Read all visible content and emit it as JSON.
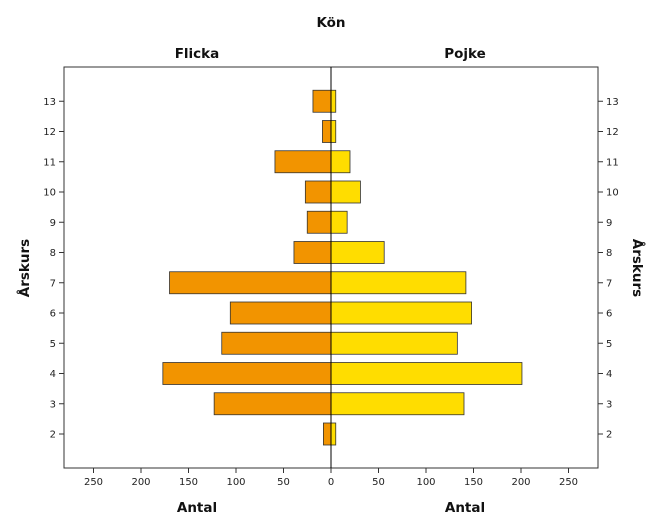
{
  "chart_data": {
    "type": "bar",
    "orientation": "horizontal",
    "layout": "population-pyramid",
    "title": "Kön",
    "panel_titles": [
      "Flicka",
      "Pojke"
    ],
    "categories": [
      "2",
      "3",
      "4",
      "5",
      "6",
      "7",
      "8",
      "9",
      "10",
      "11",
      "12",
      "13"
    ],
    "series": [
      {
        "name": "Flicka",
        "side": "left",
        "color": "#F29400",
        "values": [
          8,
          123,
          177,
          115,
          106,
          170,
          39,
          25,
          27,
          59,
          9,
          19
        ]
      },
      {
        "name": "Pojke",
        "side": "right",
        "color": "#FFDD00",
        "values": [
          5,
          140,
          201,
          133,
          148,
          142,
          56,
          17,
          31,
          20,
          5,
          5
        ]
      }
    ],
    "xlabel": [
      "Antal",
      "Antal"
    ],
    "ylabel": [
      "Årskurs",
      "Årskurs"
    ],
    "xlim": [
      0,
      280
    ],
    "xticks": [
      0,
      50,
      100,
      150,
      200,
      250
    ],
    "grid": false,
    "legend": "none"
  }
}
